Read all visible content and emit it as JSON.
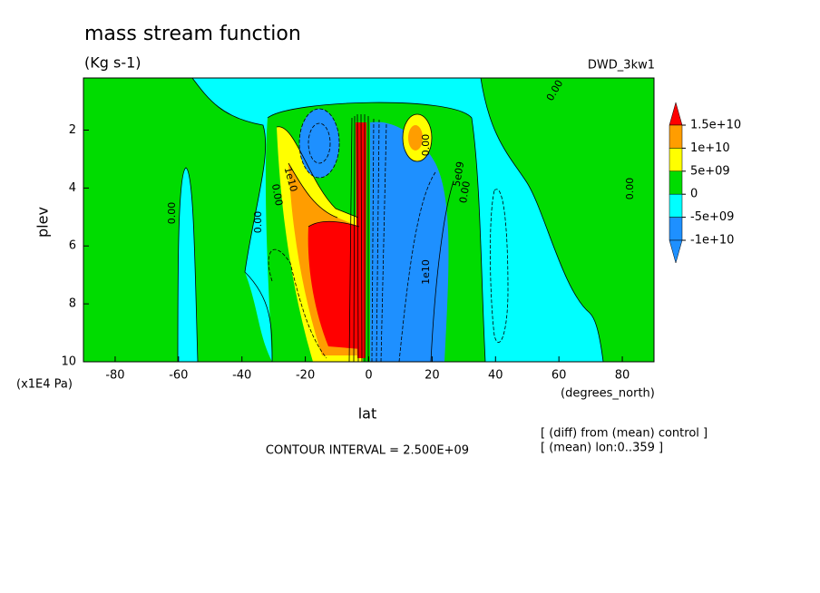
{
  "chart_data": {
    "type": "contour",
    "title": "mass stream function",
    "subtitle": "(Kg s-1)",
    "dataset": "DWD_3kw1",
    "x_label": "lat",
    "x_units": "(degrees_north)",
    "y_label": "plev",
    "y_units": "(x1E4 Pa)",
    "xlim": [
      -90,
      90
    ],
    "xticks": [
      -80,
      -60,
      -40,
      -20,
      0,
      20,
      40,
      60,
      80
    ],
    "ylim": [
      10,
      0.2
    ],
    "yticks": [
      2,
      4,
      6,
      8,
      10
    ],
    "levels": [
      {
        "value": 15000000000,
        "label": "1.5e+10"
      },
      {
        "value": 10000000000,
        "label": "1e+10"
      },
      {
        "value": 5000000000,
        "label": "5e+09"
      },
      0,
      {
        "value": -5000000000,
        "label": "-5e+09"
      },
      {
        "value": -10000000000,
        "label": "-1e+10"
      }
    ],
    "colors": [
      "#ff0000",
      "#ff9d00",
      "#ffff00",
      "#00dc00",
      "#00ffff",
      "#1e90ff",
      "#1e90ff"
    ],
    "contour_labels": [
      "0.00",
      "0.00",
      "1e10",
      "0.00",
      "0.00",
      "0.00",
      "0.00",
      "5e09",
      "0.00",
      "1e10"
    ],
    "contour_interval": "CONTOUR INTERVAL = 2.500E+09",
    "notes": [
      "[ (diff) from (mean) control ]",
      "[ (mean) lon:0..359 ]"
    ]
  }
}
